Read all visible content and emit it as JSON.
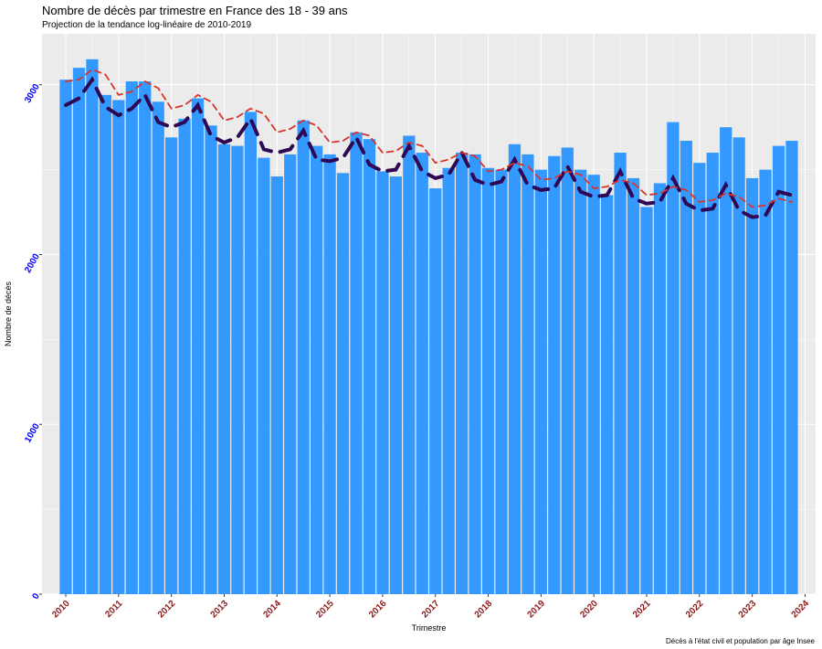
{
  "chart_data": {
    "type": "bar",
    "title": "Nombre de décès par trimestre en France des 18 - 39 ans",
    "subtitle": "Projection de la tendance log-linéaire de 2010-2019",
    "xlabel": "Trimestre",
    "ylabel": "Nombre de décès",
    "caption": "Décès à l'état civil et population par âge Insee",
    "ylim": [
      0,
      3300
    ],
    "xlim": [
      2009.55,
      2024.2
    ],
    "yticks": [
      0,
      1000,
      2000,
      3000
    ],
    "ytick_labels": [
      "0",
      "1000",
      "2000",
      "3000"
    ],
    "xticks": [
      2010,
      2011,
      2012,
      2013,
      2014,
      2015,
      2016,
      2017,
      2018,
      2019,
      2020,
      2021,
      2022,
      2023,
      2024
    ],
    "xtick_labels": [
      "2010",
      "2011",
      "2012",
      "2013",
      "2014",
      "2015",
      "2016",
      "2017",
      "2018",
      "2019",
      "2020",
      "2021",
      "2022",
      "2023",
      "2024"
    ],
    "x": [
      2010.0,
      2010.25,
      2010.5,
      2010.75,
      2011.0,
      2011.25,
      2011.5,
      2011.75,
      2012.0,
      2012.25,
      2012.5,
      2012.75,
      2013.0,
      2013.25,
      2013.5,
      2013.75,
      2014.0,
      2014.25,
      2014.5,
      2014.75,
      2015.0,
      2015.25,
      2015.5,
      2015.75,
      2016.0,
      2016.25,
      2016.5,
      2016.75,
      2017.0,
      2017.25,
      2017.5,
      2017.75,
      2018.0,
      2018.25,
      2018.5,
      2018.75,
      2019.0,
      2019.25,
      2019.5,
      2019.75,
      2020.0,
      2020.25,
      2020.5,
      2020.75,
      2021.0,
      2021.25,
      2021.5,
      2021.75,
      2022.0,
      2022.25,
      2022.5,
      2022.75,
      2023.0,
      2023.25,
      2023.5,
      2023.75
    ],
    "values": [
      3030,
      3100,
      3150,
      2940,
      2910,
      3020,
      3020,
      2900,
      2690,
      2800,
      2920,
      2760,
      2650,
      2640,
      2840,
      2570,
      2460,
      2590,
      2790,
      2640,
      2590,
      2480,
      2720,
      2680,
      2490,
      2460,
      2700,
      2600,
      2390,
      2510,
      2600,
      2590,
      2510,
      2500,
      2650,
      2590,
      2500,
      2580,
      2630,
      2500,
      2470,
      2350,
      2600,
      2450,
      2280,
      2420,
      2780,
      2670,
      2540,
      2600,
      2750,
      2690,
      2450,
      2500,
      2640,
      2670
    ],
    "series": [
      {
        "name": "",
        "style": "thick-dashed",
        "color": "#2e0854",
        "values": [
          2880,
          2920,
          3030,
          2870,
          2820,
          2860,
          2940,
          2780,
          2750,
          2780,
          2880,
          2700,
          2660,
          2690,
          2800,
          2620,
          2600,
          2620,
          2730,
          2560,
          2550,
          2570,
          2690,
          2530,
          2490,
          2500,
          2640,
          2490,
          2450,
          2470,
          2600,
          2440,
          2410,
          2430,
          2560,
          2410,
          2380,
          2390,
          2520,
          2370,
          2340,
          2350,
          2490,
          2330,
          2300,
          2310,
          2450,
          2300,
          2260,
          2270,
          2410,
          2260,
          2220,
          2230,
          2370,
          2350
        ]
      },
      {
        "name": "",
        "style": "thin-dashed",
        "color": "#d9342b",
        "values": [
          3020,
          3030,
          3090,
          3060,
          2940,
          2960,
          3020,
          2980,
          2860,
          2880,
          2940,
          2900,
          2790,
          2810,
          2860,
          2830,
          2720,
          2740,
          2790,
          2760,
          2660,
          2670,
          2720,
          2700,
          2600,
          2610,
          2660,
          2640,
          2540,
          2560,
          2600,
          2580,
          2490,
          2500,
          2540,
          2520,
          2440,
          2450,
          2490,
          2470,
          2390,
          2400,
          2440,
          2420,
          2350,
          2360,
          2400,
          2380,
          2310,
          2320,
          2360,
          2340,
          2280,
          2290,
          2330,
          2310
        ]
      }
    ],
    "colors": {
      "bar": "#3399ff",
      "panel_bg": "#ebebeb",
      "grid": "#ffffff",
      "ytick": "#0000ff",
      "xtick": "#8b1a1a"
    },
    "grid": true,
    "legend": "none"
  }
}
